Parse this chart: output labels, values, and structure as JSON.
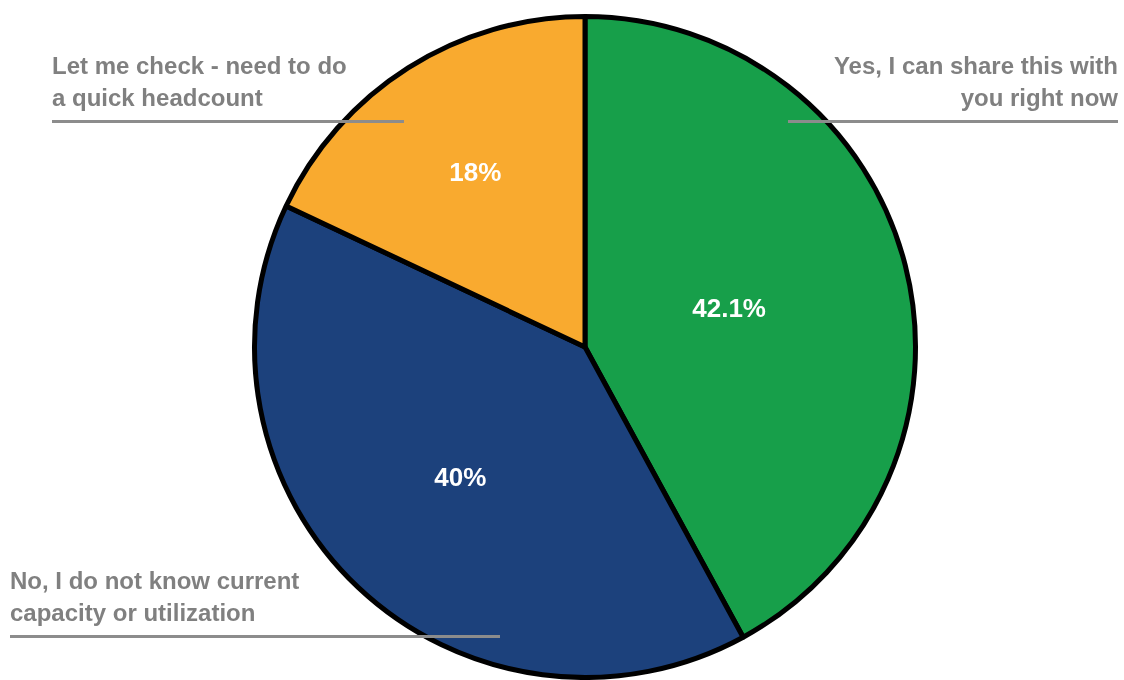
{
  "chart_data": {
    "type": "pie",
    "categories": [
      "Yes, I can share this with you right now",
      "No, I do not know current capacity or utilization",
      "Let me check - need to do a quick headcount"
    ],
    "values": [
      42.1,
      40,
      18
    ],
    "value_labels": [
      "42.1%",
      "40%",
      "18%"
    ],
    "colors": [
      "#179f4a",
      "#1c417c",
      "#f9aa2f"
    ],
    "legend": false
  }
}
